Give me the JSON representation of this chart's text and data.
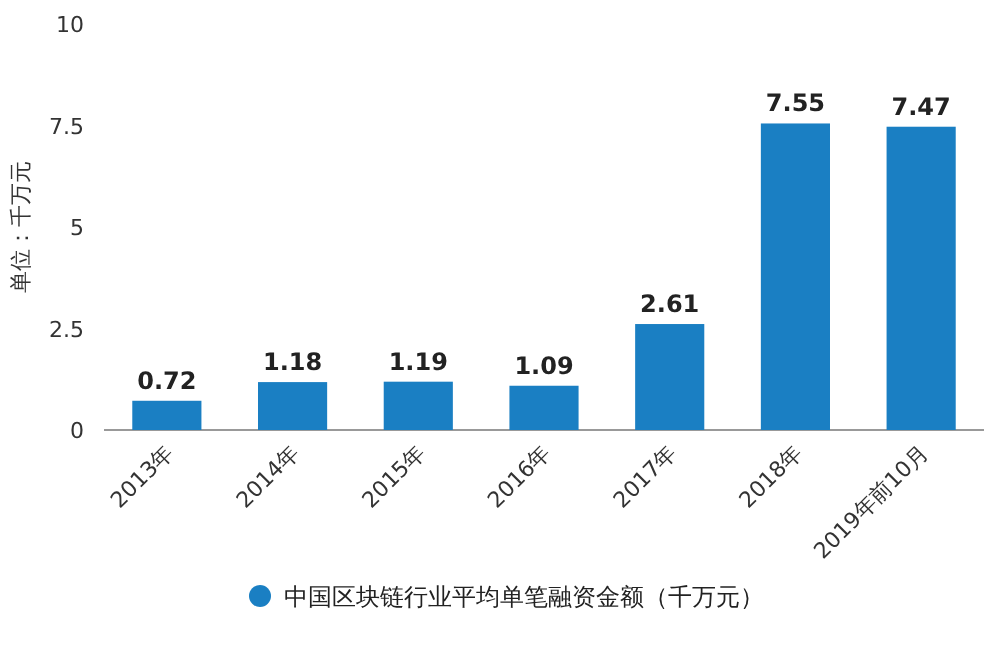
{
  "chart_data": {
    "type": "bar",
    "ylabel": "单位：千万元",
    "categories": [
      "2013年",
      "2014年",
      "2015年",
      "2016年",
      "2017年",
      "2018年",
      "2019年前10月"
    ],
    "series": [
      {
        "name": "中国区块链行业平均单笔融资金额（千万元）",
        "color": "#1a7fc3",
        "values": [
          0.72,
          1.18,
          1.19,
          1.09,
          2.61,
          7.55,
          7.47
        ]
      }
    ],
    "ylim": [
      0,
      10
    ],
    "yticks": [
      0,
      2.5,
      5,
      7.5,
      10
    ],
    "data_labels": true,
    "legend": "bottom",
    "grid": false
  }
}
